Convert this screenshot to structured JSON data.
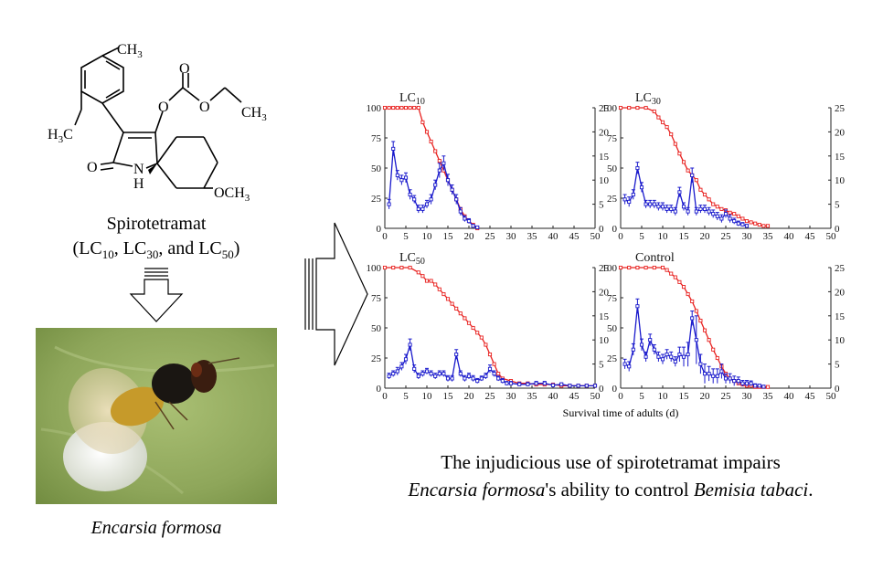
{
  "compound": {
    "name": "Spirotetramat",
    "conc_open": "(LC",
    "sub1": "10",
    "sep1": ", LC",
    "sub2": "30",
    "sep2": ", and LC",
    "sub3": "50",
    "conc_close": ")",
    "structure_labels": {
      "ch3_top": "CH",
      "ch3_top_sub": "3",
      "o1": "O",
      "o2": "O",
      "o3": "O",
      "ch3_right": "CH",
      "ch3_right_sub": "3",
      "h3c": "H",
      "h3c_sub": "3",
      "h3c_c": "C",
      "o_keto": "O",
      "n": "N",
      "h": "H",
      "och3": "OCH",
      "och3_sub": "3"
    }
  },
  "insect": {
    "species_name": "Encarsia formosa"
  },
  "conclusion": {
    "line1": "The injudicious use of spirotetramat impairs",
    "line2_part1": "Encarsia formosa",
    "line2_part2": "'s ability to control ",
    "line2_part3": "Bemisia tabaci",
    "line2_part4": "."
  },
  "colors": {
    "survival_red": "#e8211f",
    "fecundity_blue": "#1a1acc",
    "axis": "#222222"
  },
  "chart_data": [
    {
      "type": "line",
      "title": "LC",
      "title_sub": "10",
      "xlabel": "",
      "xlim": [
        0,
        50
      ],
      "ylim": [
        0,
        100
      ],
      "y2lim": [
        0,
        25
      ],
      "x_ticks": [
        0,
        5,
        10,
        15,
        20,
        25,
        30,
        35,
        40,
        45,
        50
      ],
      "y_ticks": [
        0,
        25,
        50,
        75,
        100
      ],
      "y2_ticks": [
        0,
        5,
        10,
        15,
        20,
        25
      ],
      "series": [
        {
          "axis": "left",
          "color": "#e8211f",
          "x": [
            0,
            1,
            2,
            3,
            4,
            5,
            6,
            7,
            8,
            9,
            10,
            11,
            12,
            13,
            14,
            15,
            16,
            17,
            18,
            19,
            20,
            21,
            22
          ],
          "y": [
            100,
            100,
            100,
            100,
            100,
            100,
            100,
            100,
            100,
            88,
            80,
            72,
            64,
            56,
            48,
            40,
            32,
            24,
            16,
            10,
            6,
            3,
            0
          ]
        },
        {
          "axis": "right",
          "color": "#1a1acc",
          "x": [
            1,
            2,
            3,
            4,
            5,
            6,
            7,
            8,
            9,
            10,
            11,
            12,
            13,
            14,
            15,
            16,
            17,
            18,
            19,
            20,
            21,
            22
          ],
          "y": [
            5,
            16.5,
            11,
            10,
            10.5,
            7,
            6,
            4,
            4,
            5,
            6,
            9,
            12,
            13.5,
            10,
            8,
            6,
            3.5,
            2,
            1.5,
            0.5,
            0.2
          ],
          "err": [
            1,
            1.5,
            1,
            1,
            1,
            1,
            0.8,
            0.8,
            0.8,
            0.8,
            1,
            1,
            1.5,
            1.5,
            1.2,
            1,
            1,
            0.8,
            0.6,
            0.5,
            0.3,
            0.2
          ]
        }
      ]
    },
    {
      "type": "line",
      "title": "LC",
      "title_sub": "30",
      "xlabel": "",
      "xlim": [
        0,
        50
      ],
      "ylim": [
        0,
        100
      ],
      "y2lim": [
        0,
        25
      ],
      "x_ticks": [
        0,
        5,
        10,
        15,
        20,
        25,
        30,
        35,
        40,
        45,
        50
      ],
      "y_ticks": [
        0,
        25,
        50,
        75,
        100
      ],
      "y2_ticks": [
        0,
        5,
        10,
        15,
        20,
        25
      ],
      "series": [
        {
          "axis": "left",
          "color": "#e8211f",
          "x": [
            0,
            2,
            4,
            6,
            8,
            9,
            10,
            11,
            12,
            13,
            14,
            15,
            16,
            17,
            18,
            19,
            20,
            21,
            22,
            23,
            24,
            25,
            26,
            27,
            28,
            29,
            30,
            31,
            32,
            33,
            34,
            35
          ],
          "y": [
            100,
            100,
            100,
            100,
            97,
            92,
            88,
            84,
            78,
            70,
            62,
            55,
            48,
            44,
            40,
            32,
            28,
            24,
            20,
            18,
            16,
            15,
            13,
            12,
            10,
            8,
            6,
            5,
            4,
            3,
            2,
            2
          ]
        },
        {
          "axis": "right",
          "color": "#1a1acc",
          "x": [
            1,
            2,
            3,
            4,
            5,
            6,
            7,
            8,
            9,
            10,
            11,
            12,
            13,
            14,
            15,
            16,
            17,
            18,
            19,
            20,
            21,
            22,
            23,
            24,
            25,
            26,
            27,
            28,
            29,
            30
          ],
          "y": [
            6,
            5.5,
            7,
            12.5,
            8.5,
            5,
            5,
            5,
            4.5,
            4.5,
            4,
            4,
            3.5,
            7.5,
            4.5,
            3.5,
            11,
            3.5,
            4,
            4,
            3.5,
            3,
            2.5,
            2,
            3,
            2,
            1.5,
            1,
            0.8,
            0.5
          ],
          "err": [
            1,
            1,
            1,
            1.2,
            1,
            0.8,
            0.8,
            0.8,
            0.8,
            0.8,
            0.8,
            0.8,
            0.8,
            1,
            0.8,
            0.8,
            1.5,
            0.8,
            0.8,
            0.8,
            0.8,
            0.8,
            0.8,
            0.8,
            0.8,
            0.8,
            0.6,
            0.5,
            0.4,
            0.3
          ]
        }
      ]
    },
    {
      "type": "line",
      "title": "LC",
      "title_sub": "50",
      "xlabel": "",
      "xlim": [
        0,
        50
      ],
      "ylim": [
        0,
        100
      ],
      "y2lim": [
        0,
        25
      ],
      "x_ticks": [
        0,
        5,
        10,
        15,
        20,
        25,
        30,
        35,
        40,
        45,
        50
      ],
      "y_ticks": [
        0,
        25,
        50,
        75,
        100
      ],
      "y2_ticks": [
        0,
        5,
        10,
        15,
        20,
        25
      ],
      "series": [
        {
          "axis": "left",
          "color": "#e8211f",
          "x": [
            0,
            2,
            4,
            6,
            8,
            9,
            10,
            11,
            12,
            13,
            14,
            15,
            16,
            17,
            18,
            19,
            20,
            21,
            22,
            23,
            24,
            25,
            26,
            27,
            28,
            30,
            32,
            34,
            36,
            38,
            40,
            42,
            44,
            46,
            48,
            50
          ],
          "y": [
            100,
            100,
            100,
            100,
            96,
            93,
            89,
            89,
            86,
            82,
            78,
            74,
            70,
            66,
            62,
            58,
            54,
            50,
            46,
            42,
            36,
            28,
            20,
            12,
            8,
            6,
            4,
            4,
            3,
            3,
            3,
            2,
            2,
            2,
            2,
            2
          ]
        },
        {
          "axis": "right",
          "color": "#1a1acc",
          "x": [
            1,
            2,
            3,
            4,
            5,
            6,
            7,
            8,
            9,
            10,
            11,
            12,
            13,
            14,
            15,
            16,
            17,
            18,
            19,
            20,
            21,
            22,
            23,
            24,
            25,
            26,
            27,
            28,
            29,
            30,
            32,
            34,
            36,
            38,
            40,
            42,
            44,
            46,
            48,
            50
          ],
          "y": [
            2.5,
            3,
            3.5,
            4.5,
            6,
            9,
            4,
            2.5,
            3,
            3.5,
            3,
            2.5,
            3,
            3,
            2,
            2,
            7,
            3,
            2,
            2.5,
            2,
            1.5,
            2,
            2.5,
            4,
            3,
            2,
            1.5,
            1,
            1,
            0.8,
            0.8,
            1,
            1,
            0.6,
            0.8,
            0.5,
            0.5,
            0.5,
            0.5
          ],
          "err": [
            0.6,
            0.6,
            0.8,
            0.8,
            1,
            1.2,
            0.8,
            0.6,
            0.6,
            0.6,
            0.6,
            0.6,
            0.6,
            0.6,
            0.6,
            0.6,
            1,
            0.6,
            0.6,
            0.6,
            0.6,
            0.5,
            0.5,
            0.6,
            0.8,
            0.6,
            0.5,
            0.5,
            0.4,
            0.4,
            0.4,
            0.4,
            0.4,
            0.4,
            0.3,
            0.3,
            0.3,
            0.3,
            0.3,
            0.3
          ]
        }
      ]
    },
    {
      "type": "line",
      "title": "Control",
      "title_sub": "",
      "xlabel": "",
      "xlim": [
        0,
        50
      ],
      "ylim": [
        0,
        100
      ],
      "y2lim": [
        0,
        25
      ],
      "x_ticks": [
        0,
        5,
        10,
        15,
        20,
        25,
        30,
        35,
        40,
        45,
        50
      ],
      "y_ticks": [
        0,
        25,
        50,
        75,
        100
      ],
      "y2_ticks": [
        0,
        5,
        10,
        15,
        20,
        25
      ],
      "series": [
        {
          "axis": "left",
          "color": "#e8211f",
          "x": [
            0,
            2,
            4,
            6,
            8,
            10,
            11,
            12,
            13,
            14,
            15,
            16,
            17,
            18,
            19,
            20,
            21,
            22,
            23,
            24,
            25,
            26,
            27,
            28,
            29,
            30,
            31,
            32,
            33,
            34,
            35
          ],
          "y": [
            100,
            100,
            100,
            100,
            100,
            100,
            98,
            95,
            92,
            88,
            84,
            78,
            72,
            64,
            56,
            48,
            40,
            32,
            25,
            18,
            12,
            8,
            6,
            4,
            3,
            2,
            2,
            1,
            1,
            1,
            1
          ]
        },
        {
          "axis": "right",
          "color": "#1a1acc",
          "x": [
            1,
            2,
            3,
            4,
            5,
            6,
            7,
            8,
            9,
            10,
            11,
            12,
            13,
            14,
            15,
            16,
            17,
            18,
            19,
            20,
            21,
            22,
            23,
            24,
            25,
            26,
            27,
            28,
            29,
            30,
            31,
            32,
            33,
            34
          ],
          "y": [
            5,
            4.5,
            8,
            17,
            9,
            6.5,
            10,
            8,
            6.5,
            6,
            7,
            6.5,
            5.5,
            7,
            6.5,
            7,
            14.5,
            10,
            5,
            3,
            3,
            2.5,
            2.5,
            3.5,
            2,
            2,
            1.5,
            1.5,
            1,
            1,
            1,
            0.5,
            0.5,
            0.3
          ],
          "err": [
            1,
            1,
            1.2,
            1.5,
            1.2,
            1,
            1.2,
            1,
            1,
            1,
            1,
            1,
            1,
            1.5,
            2,
            2.5,
            1.5,
            5,
            2,
            2,
            1.5,
            1.5,
            1.5,
            1.5,
            1,
            1,
            1,
            0.8,
            0.6,
            0.6,
            0.5,
            0.4,
            0.3,
            0.3
          ]
        }
      ]
    }
  ],
  "figure": {
    "shared_xlabel": "Survival time of adults (d)"
  }
}
